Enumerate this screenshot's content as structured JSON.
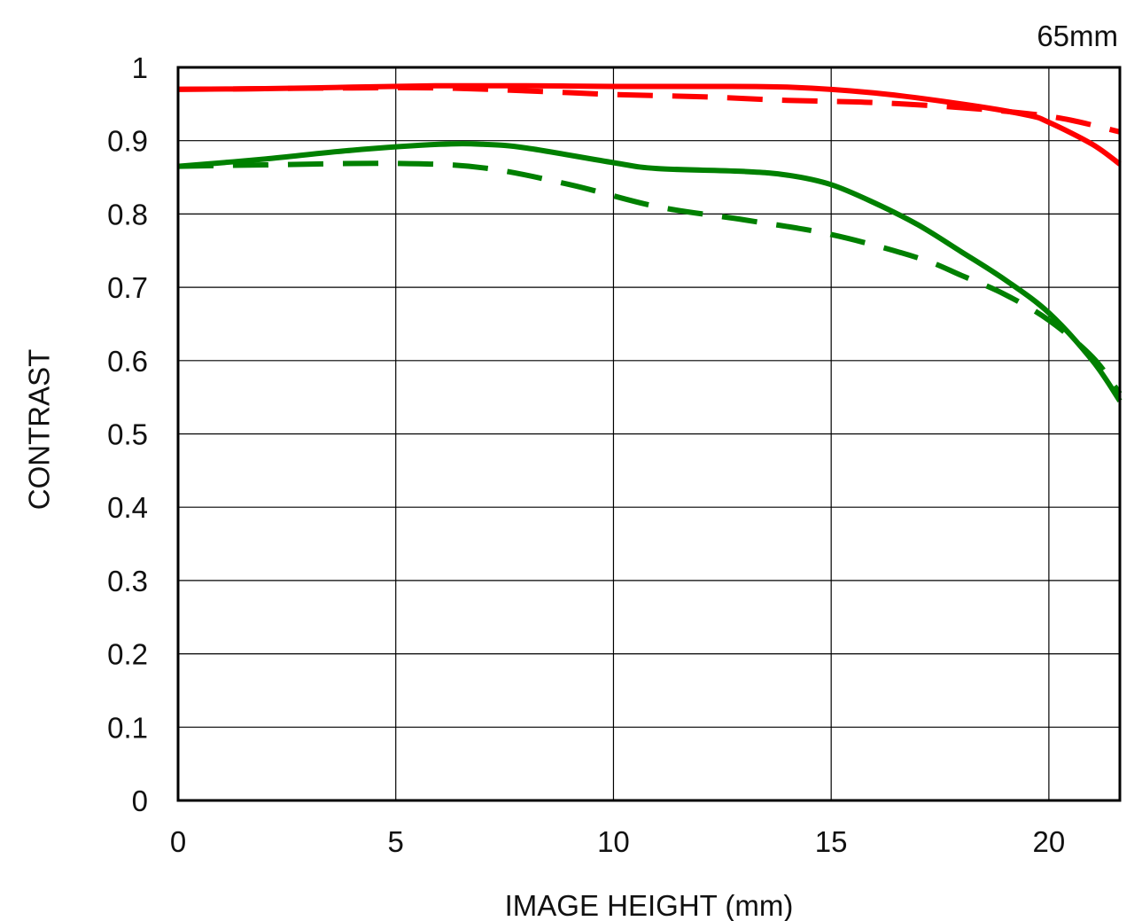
{
  "chart_data": {
    "type": "line",
    "annotation": "65mm",
    "xlabel": "IMAGE HEIGHT (mm)",
    "ylabel": "CONTRAST",
    "xlim": [
      0,
      21.63
    ],
    "ylim": [
      0,
      1
    ],
    "x_ticks": [
      "0",
      "5",
      "10",
      "15",
      "20"
    ],
    "y_ticks": [
      "0",
      "0.1",
      "0.2",
      "0.3",
      "0.4",
      "0.5",
      "0.6",
      "0.7",
      "0.8",
      "0.9",
      "1"
    ],
    "grid": true,
    "series": [
      {
        "color": "#ff0000",
        "style": "solid",
        "points": [
          [
            0,
            0.97
          ],
          [
            2,
            0.971
          ],
          [
            4,
            0.973
          ],
          [
            6,
            0.975
          ],
          [
            8,
            0.975
          ],
          [
            10,
            0.974
          ],
          [
            12,
            0.974
          ],
          [
            14,
            0.973
          ],
          [
            16,
            0.965
          ],
          [
            18,
            0.95
          ],
          [
            19.5,
            0.935
          ],
          [
            20,
            0.925
          ],
          [
            21,
            0.895
          ],
          [
            21.63,
            0.868
          ]
        ]
      },
      {
        "color": "#ff0000",
        "style": "dashed",
        "points": [
          [
            0,
            0.97
          ],
          [
            2,
            0.971
          ],
          [
            4,
            0.972
          ],
          [
            6,
            0.972
          ],
          [
            8,
            0.968
          ],
          [
            10,
            0.963
          ],
          [
            12,
            0.96
          ],
          [
            14,
            0.955
          ],
          [
            16,
            0.952
          ],
          [
            18,
            0.945
          ],
          [
            19.5,
            0.937
          ],
          [
            20.5,
            0.928
          ],
          [
            21.63,
            0.912
          ]
        ]
      },
      {
        "color": "#008000",
        "style": "solid",
        "points": [
          [
            0,
            0.865
          ],
          [
            2,
            0.875
          ],
          [
            4,
            0.887
          ],
          [
            6,
            0.895
          ],
          [
            7,
            0.895
          ],
          [
            8,
            0.89
          ],
          [
            10,
            0.87
          ],
          [
            11,
            0.862
          ],
          [
            13,
            0.858
          ],
          [
            14,
            0.853
          ],
          [
            15,
            0.84
          ],
          [
            16,
            0.815
          ],
          [
            17,
            0.785
          ],
          [
            18,
            0.748
          ],
          [
            19,
            0.71
          ],
          [
            20,
            0.665
          ],
          [
            21,
            0.6
          ],
          [
            21.63,
            0.545
          ]
        ]
      },
      {
        "color": "#008000",
        "style": "dashed",
        "points": [
          [
            0,
            0.865
          ],
          [
            2,
            0.867
          ],
          [
            5,
            0.869
          ],
          [
            7,
            0.863
          ],
          [
            9,
            0.84
          ],
          [
            11,
            0.81
          ],
          [
            13,
            0.792
          ],
          [
            15,
            0.772
          ],
          [
            17,
            0.74
          ],
          [
            18,
            0.716
          ],
          [
            19,
            0.69
          ],
          [
            20,
            0.655
          ],
          [
            21,
            0.605
          ],
          [
            21.63,
            0.555
          ]
        ]
      }
    ]
  }
}
